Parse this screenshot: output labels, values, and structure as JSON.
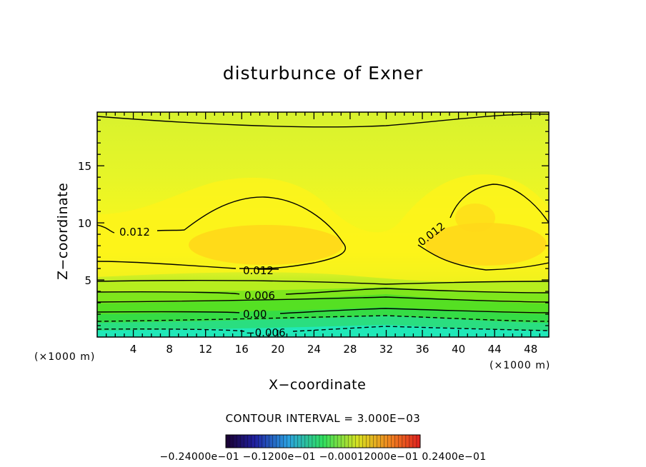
{
  "chart_data": {
    "type": "contour",
    "title": "disturbunce of Exner",
    "xlabel": "X−coordinate",
    "ylabel": "Z−coordinate",
    "x_unit": "(×1000 m)",
    "y_unit": "(×1000 m)",
    "xlim": [
      0,
      50
    ],
    "ylim": [
      0,
      19.7
    ],
    "x_ticks": [
      4,
      8,
      12,
      16,
      20,
      24,
      28,
      32,
      36,
      40,
      44,
      48
    ],
    "y_ticks": [
      5,
      10,
      15
    ],
    "contour_interval_text": "CONTOUR INTERVAL = 3.000E−03",
    "contour_labels": [
      "0.012",
      "0.012",
      "0.012",
      "0.006",
      "0.00",
      "−0.006"
    ],
    "colorbar_text": "−0.24000e−01 −0.1200e−01 −0.00012000e−01 0.2400e−01",
    "colors": {
      "low": "#1fe7c0",
      "mid": "#5ee32a",
      "upper": "#c8f03a",
      "high": "#fff300",
      "max": "#ffd20f"
    }
  }
}
